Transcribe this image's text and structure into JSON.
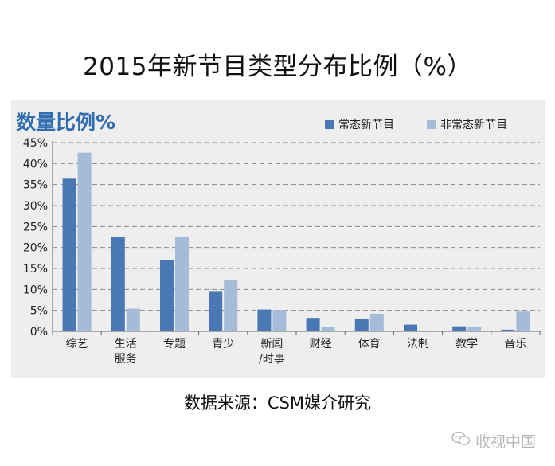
{
  "page": {
    "title": "2015年新节目类型分布比例（%）",
    "source": "数据来源：CSM媒介研究",
    "watermark": "收视中国",
    "watermark_icon": "wechat-icon"
  },
  "colors": {
    "series1": "#4a78b4",
    "series2": "#a5bcd9",
    "heading": "#2f6db0",
    "panel": "#eeeeee",
    "grid": "#888888"
  },
  "chart_data": {
    "type": "bar",
    "title": "数量比例%",
    "categories": [
      "综艺",
      "生活\n服务",
      "专题",
      "青少",
      "新闻\n/时事",
      "财经",
      "体育",
      "法制",
      "教学",
      "音乐"
    ],
    "series": [
      {
        "name": "常态新节目",
        "values": [
          36.4,
          22.5,
          17.0,
          9.6,
          5.2,
          3.2,
          3.0,
          1.6,
          1.2,
          0.4
        ]
      },
      {
        "name": "非常态新节目",
        "values": [
          42.6,
          5.4,
          22.6,
          12.3,
          5.1,
          1.0,
          4.2,
          0.2,
          1.0,
          4.7
        ]
      }
    ],
    "ylim": [
      0,
      45
    ],
    "yticks": [
      0,
      5,
      10,
      15,
      20,
      25,
      30,
      35,
      40,
      45
    ],
    "ytick_suffix": "%",
    "grid": true,
    "legend_position": "top-right"
  }
}
